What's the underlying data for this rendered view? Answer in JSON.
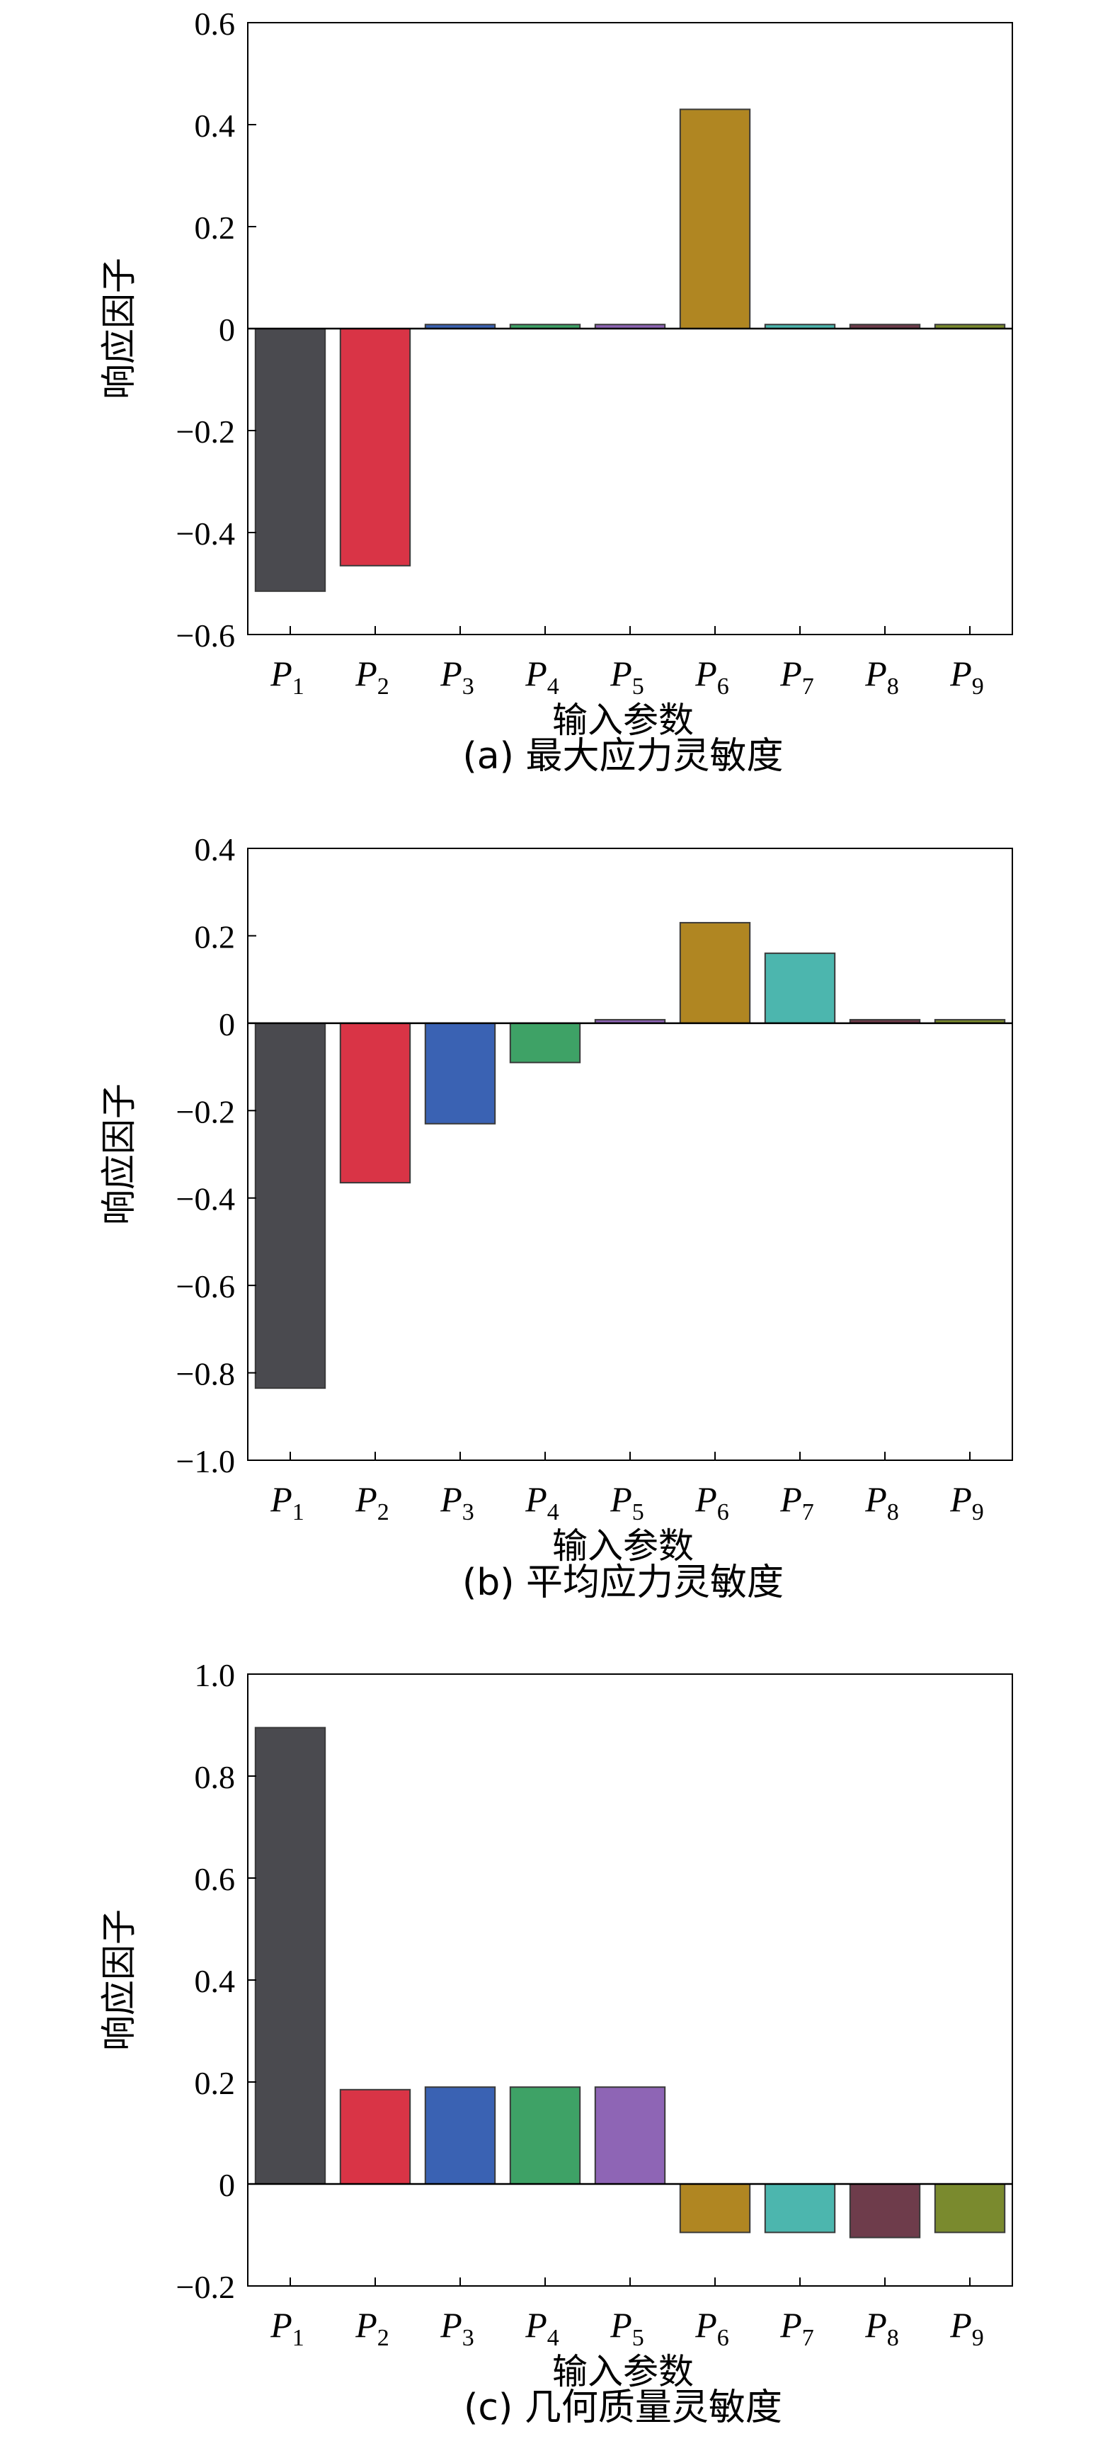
{
  "chart_data": [
    {
      "type": "bar",
      "caption": "(a) 最大应力灵敏度",
      "xlabel": "输入参数",
      "ylabel": "响应因子",
      "ylim": [
        -0.6,
        0.6
      ],
      "yticks": [
        "0.6",
        "0.4",
        "0.2",
        "0",
        "−0.2",
        "−0.4",
        "−0.6"
      ],
      "ytick_values": [
        0.6,
        0.4,
        0.2,
        0,
        -0.2,
        -0.4,
        -0.6
      ],
      "categories": [
        {
          "letter": "P",
          "sub": "1"
        },
        {
          "letter": "P",
          "sub": "2"
        },
        {
          "letter": "P",
          "sub": "3"
        },
        {
          "letter": "P",
          "sub": "4"
        },
        {
          "letter": "P",
          "sub": "5"
        },
        {
          "letter": "P",
          "sub": "6"
        },
        {
          "letter": "P",
          "sub": "7"
        },
        {
          "letter": "P",
          "sub": "8"
        },
        {
          "letter": "P",
          "sub": "9"
        }
      ],
      "values": [
        -0.515,
        -0.465,
        0.008,
        0.008,
        0.008,
        0.43,
        0.008,
        0.008,
        0.008
      ],
      "grid": false
    },
    {
      "type": "bar",
      "caption": "(b) 平均应力灵敏度",
      "xlabel": "输入参数",
      "ylabel": "响应因子",
      "ylim": [
        -1.0,
        0.4
      ],
      "yticks": [
        "0.4",
        "0.2",
        "0",
        "−0.2",
        "−0.4",
        "−0.6",
        "−0.8",
        "−1.0"
      ],
      "ytick_values": [
        0.4,
        0.2,
        0,
        -0.2,
        -0.4,
        -0.6,
        -0.8,
        -1.0
      ],
      "categories": [
        {
          "letter": "P",
          "sub": "1"
        },
        {
          "letter": "P",
          "sub": "2"
        },
        {
          "letter": "P",
          "sub": "3"
        },
        {
          "letter": "P",
          "sub": "4"
        },
        {
          "letter": "P",
          "sub": "5"
        },
        {
          "letter": "P",
          "sub": "6"
        },
        {
          "letter": "P",
          "sub": "7"
        },
        {
          "letter": "P",
          "sub": "8"
        },
        {
          "letter": "P",
          "sub": "9"
        }
      ],
      "values": [
        -0.835,
        -0.365,
        -0.23,
        -0.09,
        0.008,
        0.23,
        0.16,
        0.008,
        0.008
      ],
      "grid": false
    },
    {
      "type": "bar",
      "caption": "(c) 几何质量灵敏度",
      "xlabel": "输入参数",
      "ylabel": "响应因子",
      "ylim": [
        -0.2,
        1.0
      ],
      "yticks": [
        "1.0",
        "0.8",
        "0.6",
        "0.4",
        "0.2",
        "0",
        "−0.2"
      ],
      "ytick_values": [
        1.0,
        0.8,
        0.6,
        0.4,
        0.2,
        0,
        -0.2
      ],
      "categories": [
        {
          "letter": "P",
          "sub": "1"
        },
        {
          "letter": "P",
          "sub": "2"
        },
        {
          "letter": "P",
          "sub": "3"
        },
        {
          "letter": "P",
          "sub": "4"
        },
        {
          "letter": "P",
          "sub": "5"
        },
        {
          "letter": "P",
          "sub": "6"
        },
        {
          "letter": "P",
          "sub": "7"
        },
        {
          "letter": "P",
          "sub": "8"
        },
        {
          "letter": "P",
          "sub": "9"
        }
      ],
      "values": [
        0.895,
        0.185,
        0.19,
        0.19,
        0.19,
        -0.095,
        -0.095,
        -0.105,
        -0.095
      ],
      "grid": false
    }
  ],
  "colors": {
    "bars": [
      "#4a4a4f",
      "#d93446",
      "#3a62b3",
      "#3ea266",
      "#8e65b5",
      "#b08622",
      "#4cb6ae",
      "#6e3c4b",
      "#7a8a2e"
    ],
    "bar_stroke": "#3a3a3a",
    "axis": "#000000"
  }
}
